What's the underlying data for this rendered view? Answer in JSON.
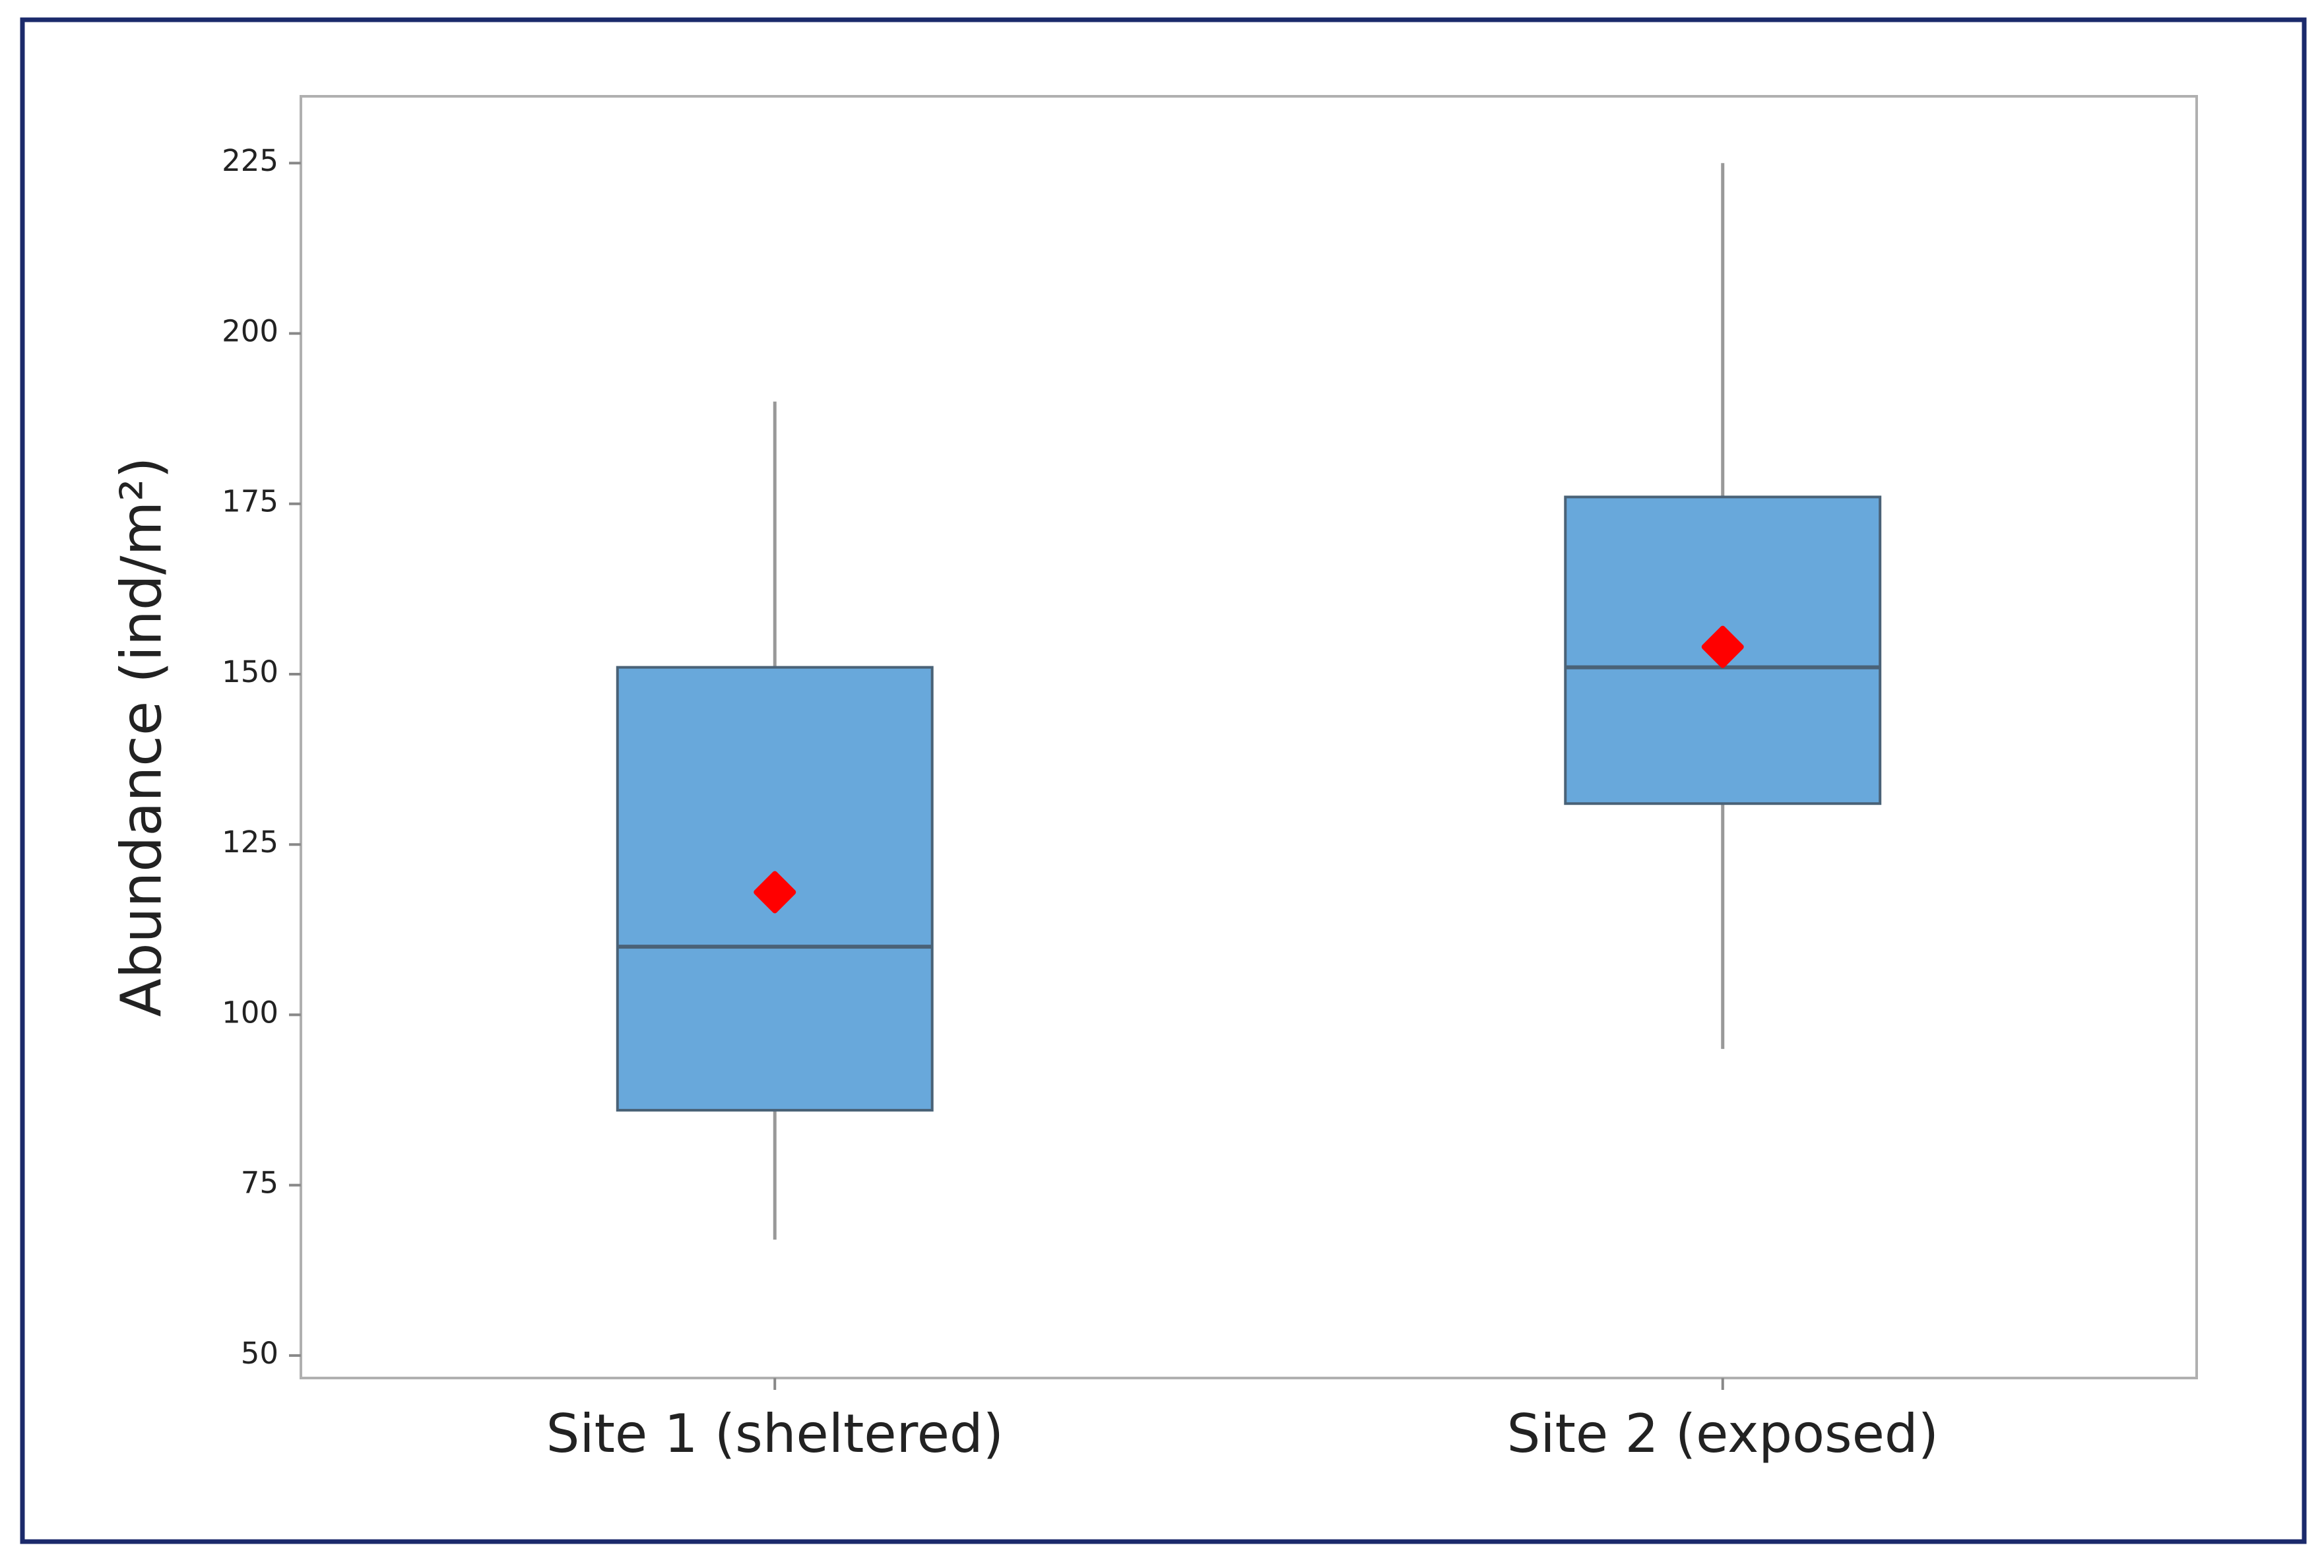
{
  "chart_data": {
    "type": "box",
    "y_label": "Abundance (ind/m²)",
    "categories": [
      "Site 1 (sheltered)",
      "Site 2 (exposed)"
    ],
    "boxes": [
      {
        "min": 67,
        "q1": 86,
        "median": 110,
        "q3": 151,
        "max": 190,
        "mean": 118
      },
      {
        "min": 95,
        "q1": 131,
        "median": 151,
        "q3": 176,
        "max": 225,
        "mean": 154
      }
    ],
    "color": "#68a8db",
    "mean_color": "#ff0000",
    "ylim": [
      46.7,
      234.8
    ],
    "yticks": [
      50,
      75,
      100,
      125,
      150,
      175,
      200,
      225
    ]
  }
}
